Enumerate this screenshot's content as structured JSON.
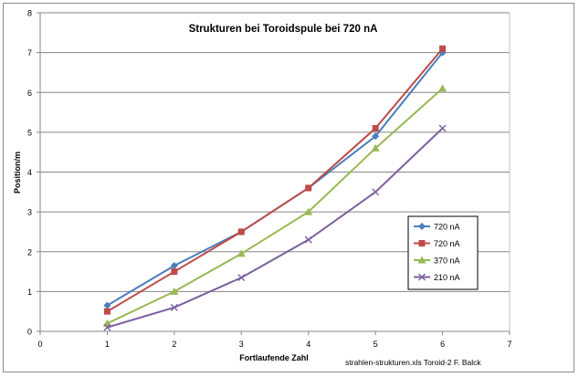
{
  "chart_data": {
    "type": "line",
    "title": "Strukturen bei Toroidspule  bei 720 nA",
    "xlabel": "Fortlaufende Zahl",
    "ylabel": "Position/m",
    "xlim": [
      0,
      7
    ],
    "ylim": [
      0,
      8
    ],
    "x_ticks": [
      "0",
      "1",
      "2",
      "3",
      "4",
      "5",
      "6",
      "7"
    ],
    "y_ticks": [
      "0",
      "1",
      "2",
      "3",
      "4",
      "5",
      "6",
      "7",
      "8"
    ],
    "grid": "horizontal",
    "legend_position": "right-bottom",
    "footer": "strahlen-strukturen.xls  Toroid-2   F. Balck",
    "series": [
      {
        "name": "720 nA",
        "color": "#4a7ebb",
        "marker": "diamond",
        "x": [
          1,
          2,
          3,
          4,
          5,
          6
        ],
        "y": [
          0.65,
          1.65,
          2.5,
          3.6,
          4.9,
          7.0
        ]
      },
      {
        "name": "720 nA",
        "color": "#be4b48",
        "marker": "square",
        "x": [
          1,
          2,
          3,
          4,
          5,
          6
        ],
        "y": [
          0.5,
          1.5,
          2.5,
          3.6,
          5.1,
          7.1
        ]
      },
      {
        "name": "370 nA",
        "color": "#98b954",
        "marker": "triangle",
        "x": [
          1,
          2,
          3,
          4,
          5,
          6
        ],
        "y": [
          0.2,
          1.0,
          1.95,
          3.0,
          4.6,
          6.1
        ]
      },
      {
        "name": "210 nA",
        "color": "#7d60a0",
        "marker": "x",
        "x": [
          1,
          2,
          3,
          4,
          5,
          6
        ],
        "y": [
          0.1,
          0.6,
          1.35,
          2.3,
          3.5,
          5.1
        ]
      }
    ]
  }
}
